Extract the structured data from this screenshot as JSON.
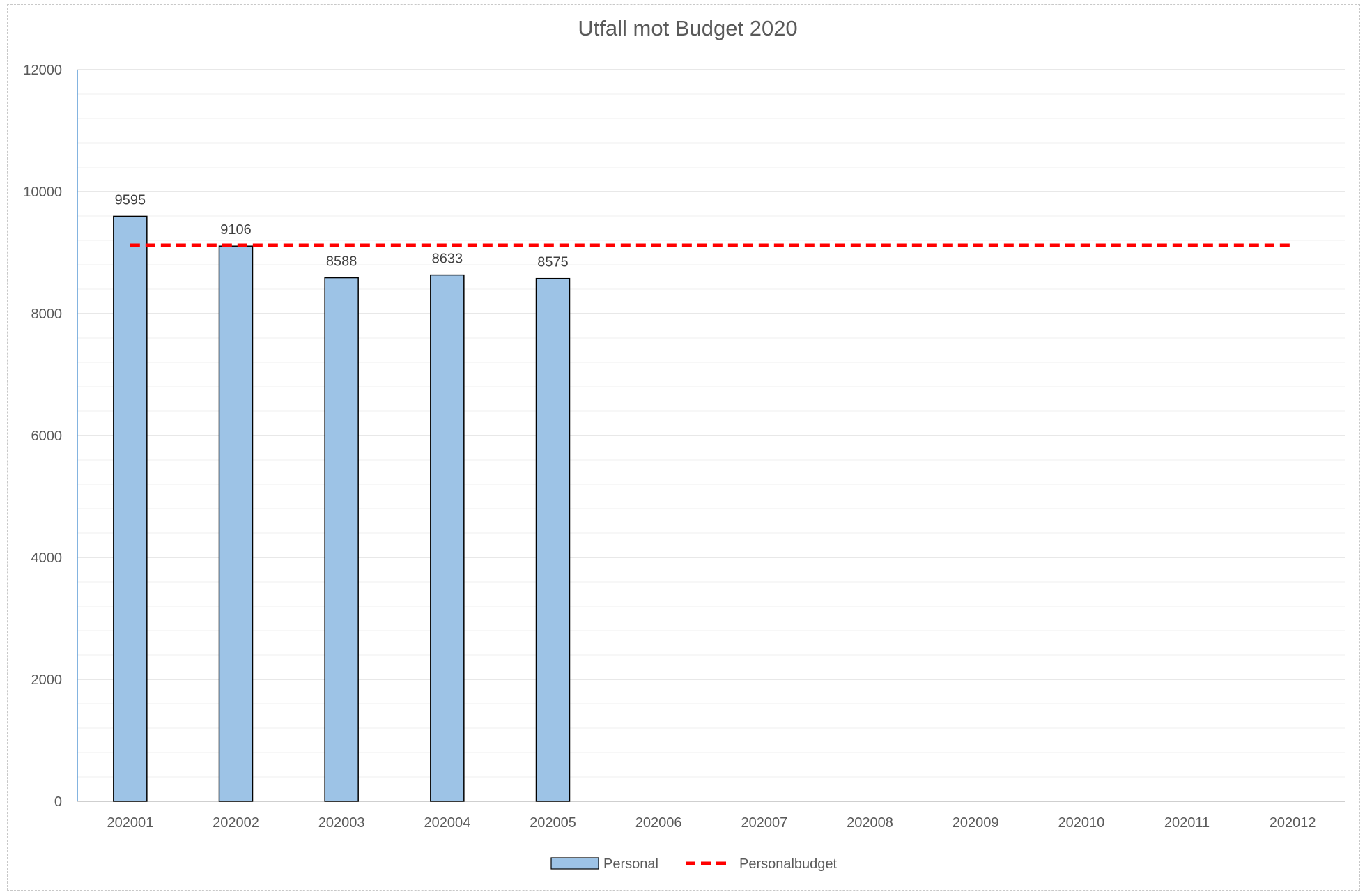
{
  "chart_data": {
    "type": "bar",
    "title": "Utfall mot Budget 2020",
    "xlabel": "",
    "ylabel": "",
    "categories": [
      "202001",
      "202002",
      "202003",
      "202004",
      "202005",
      "202006",
      "202007",
      "202008",
      "202009",
      "202010",
      "202011",
      "202012"
    ],
    "series": [
      {
        "name": "Personal",
        "kind": "bar",
        "values": [
          9595,
          9106,
          8588,
          8633,
          8575,
          null,
          null,
          null,
          null,
          null,
          null,
          null
        ],
        "color": "#9DC3E6",
        "stroke": "#000000"
      },
      {
        "name": "Personalbudget",
        "kind": "line",
        "style": "dashed",
        "values": [
          9120,
          9120,
          9120,
          9120,
          9120,
          9120,
          9120,
          9120,
          9120,
          9120,
          9120,
          9120
        ],
        "color": "#FF0000"
      }
    ],
    "ylim": [
      0,
      12000
    ],
    "yticks": [
      "0",
      "2000",
      "4000",
      "6000",
      "8000",
      "10000",
      "12000"
    ],
    "data_labels": [
      "9595",
      "9106",
      "8588",
      "8633",
      "8575"
    ],
    "grid": true,
    "legend_position": "bottom"
  }
}
